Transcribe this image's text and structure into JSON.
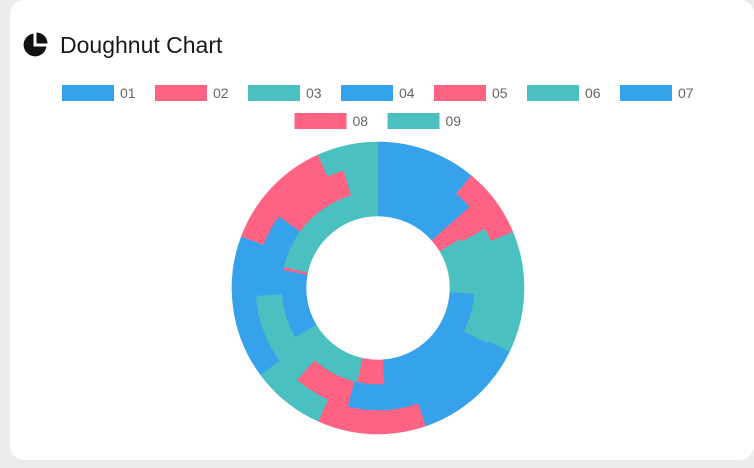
{
  "header": {
    "title": "Doughnut Chart",
    "icon": "pie-chart-icon"
  },
  "colors": {
    "blue": "#36A2EB",
    "pink": "#FF6384",
    "teal": "#4BC0C0"
  },
  "chart_data": {
    "type": "doughnut",
    "title": "",
    "legend": {
      "position": "top",
      "labels": [
        "01",
        "02",
        "03",
        "04",
        "05",
        "06",
        "07",
        "08",
        "09"
      ],
      "colors": [
        "#36A2EB",
        "#FF6384",
        "#4BC0C0",
        "#36A2EB",
        "#FF6384",
        "#4BC0C0",
        "#36A2EB",
        "#FF6384",
        "#4BC0C0"
      ]
    },
    "categories": [
      "01",
      "02",
      "03",
      "04",
      "05",
      "06",
      "07",
      "08",
      "09"
    ],
    "series": [
      {
        "values": [
          11.5,
          8.0,
          14.0,
          13.0,
          12.5,
          8.5,
          16.5,
          13.0,
          7.0
        ]
      },
      {
        "values": [
          13.5,
          3.5,
          15.5,
          21.5,
          7.5,
          12.5,
          11.0,
          10.5,
          4.5
        ]
      },
      {
        "values": [
          13.5,
          3.0,
          9.5,
          23.0,
          4.5,
          13.0,
          11.5,
          0.5,
          21.5
        ]
      }
    ]
  }
}
